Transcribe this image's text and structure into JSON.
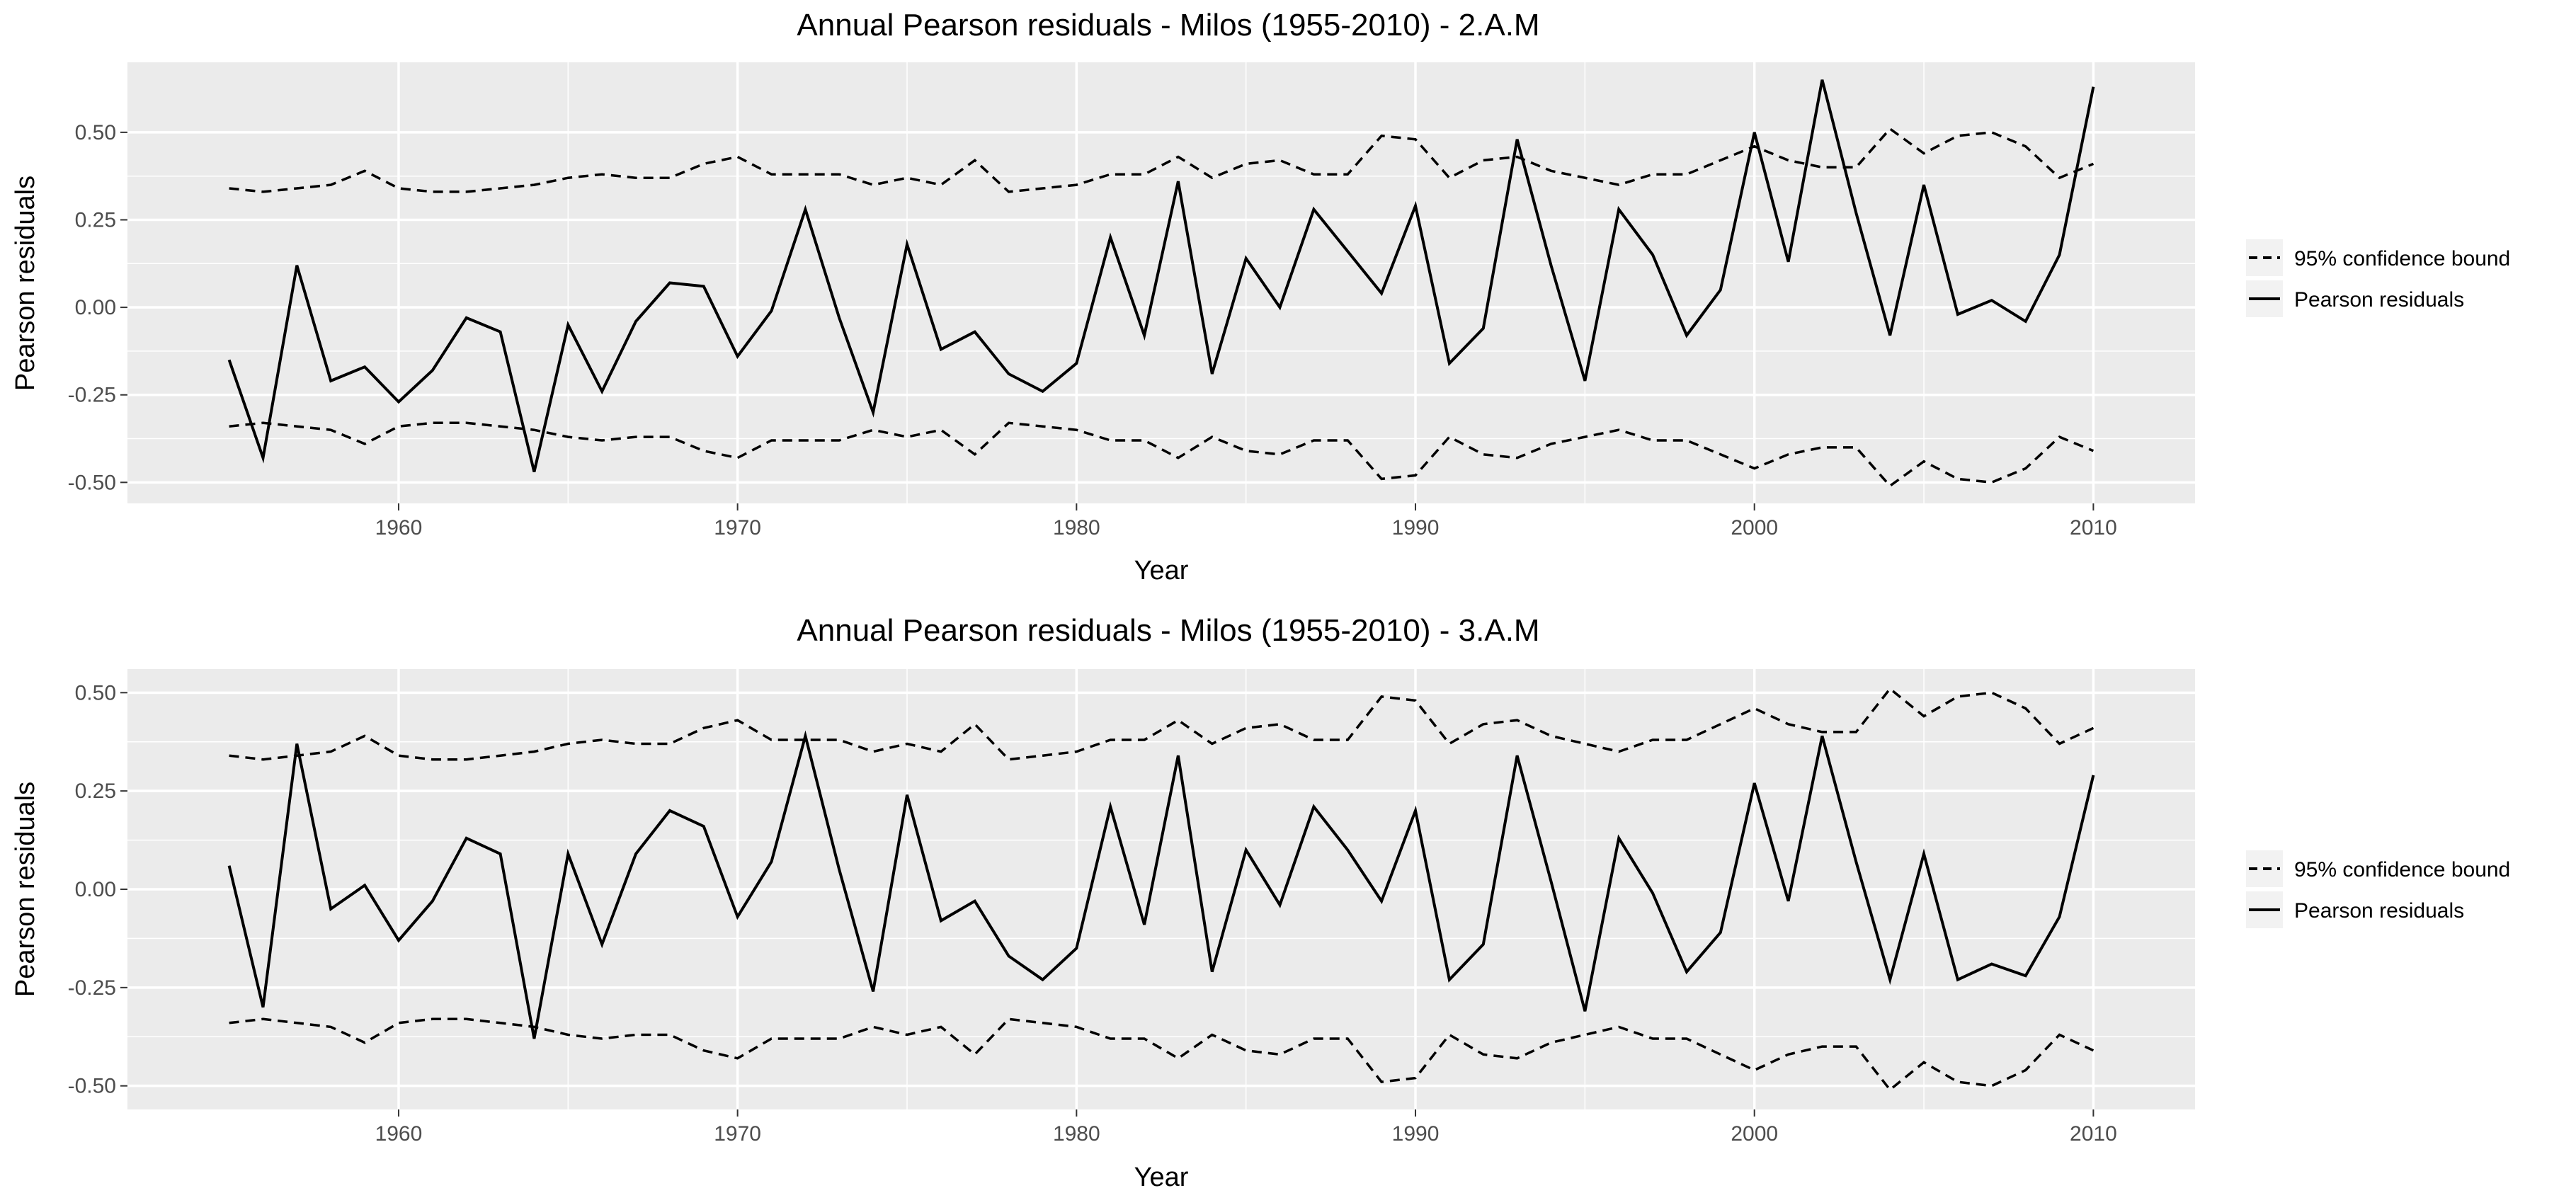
{
  "chart_data": [
    {
      "type": "line",
      "title": "Annual Pearson residuals - Milos (1955-2010) - 2.A.M",
      "xlabel": "Year",
      "ylabel": "Pearson residuals",
      "xlim": [
        1952,
        2013
      ],
      "ylim": [
        -0.56,
        0.7
      ],
      "grid": true,
      "legend_position": "right",
      "x_ticks": [
        1960,
        1970,
        1980,
        1990,
        2000,
        2010
      ],
      "x_tick_labels": [
        "1960",
        "1970",
        "1980",
        "1990",
        "2000",
        "2010"
      ],
      "y_ticks": [
        -0.5,
        -0.25,
        0,
        0.25,
        0.5
      ],
      "y_tick_labels": [
        "-0.50",
        "-0.25",
        "0.00",
        "0.25",
        "0.50"
      ],
      "x": [
        1955,
        1956,
        1957,
        1958,
        1959,
        1960,
        1961,
        1962,
        1963,
        1964,
        1965,
        1966,
        1967,
        1968,
        1969,
        1970,
        1971,
        1972,
        1973,
        1974,
        1975,
        1976,
        1977,
        1978,
        1979,
        1980,
        1981,
        1982,
        1983,
        1984,
        1985,
        1986,
        1987,
        1988,
        1989,
        1990,
        1991,
        1992,
        1993,
        1994,
        1995,
        1996,
        1997,
        1998,
        1999,
        2000,
        2001,
        2002,
        2003,
        2004,
        2005,
        2006,
        2007,
        2008,
        2009,
        2010
      ],
      "series": [
        {
          "name": "95% confidence bound",
          "style": "dashed",
          "color": "#000000",
          "upper": [
            0.34,
            0.33,
            0.34,
            0.35,
            0.39,
            0.34,
            0.33,
            0.33,
            0.34,
            0.35,
            0.37,
            0.38,
            0.37,
            0.37,
            0.41,
            0.43,
            0.38,
            0.38,
            0.38,
            0.35,
            0.37,
            0.35,
            0.42,
            0.33,
            0.34,
            0.35,
            0.38,
            0.38,
            0.43,
            0.37,
            0.41,
            0.42,
            0.38,
            0.38,
            0.49,
            0.48,
            0.37,
            0.42,
            0.43,
            0.39,
            0.37,
            0.35,
            0.38,
            0.38,
            0.42,
            0.46,
            0.42,
            0.4,
            0.4,
            0.51,
            0.44,
            0.49,
            0.5,
            0.46,
            0.37,
            0.41
          ],
          "lower": [
            -0.34,
            -0.33,
            -0.34,
            -0.35,
            -0.39,
            -0.34,
            -0.33,
            -0.33,
            -0.34,
            -0.35,
            -0.37,
            -0.38,
            -0.37,
            -0.37,
            -0.41,
            -0.43,
            -0.38,
            -0.38,
            -0.38,
            -0.35,
            -0.37,
            -0.35,
            -0.42,
            -0.33,
            -0.34,
            -0.35,
            -0.38,
            -0.38,
            -0.43,
            -0.37,
            -0.41,
            -0.42,
            -0.38,
            -0.38,
            -0.49,
            -0.48,
            -0.37,
            -0.42,
            -0.43,
            -0.39,
            -0.37,
            -0.35,
            -0.38,
            -0.38,
            -0.42,
            -0.46,
            -0.42,
            -0.4,
            -0.4,
            -0.51,
            -0.44,
            -0.49,
            -0.5,
            -0.46,
            -0.37,
            -0.41
          ]
        },
        {
          "name": "Pearson residuals",
          "style": "solid",
          "color": "#000000",
          "values": [
            -0.15,
            -0.43,
            0.12,
            -0.21,
            -0.17,
            -0.27,
            -0.18,
            -0.03,
            -0.07,
            -0.47,
            -0.05,
            -0.24,
            -0.04,
            0.07,
            0.06,
            -0.14,
            -0.01,
            0.28,
            -0.03,
            -0.3,
            0.18,
            -0.12,
            -0.07,
            -0.19,
            -0.24,
            -0.16,
            0.2,
            -0.08,
            0.36,
            -0.19,
            0.14,
            0.0,
            0.28,
            0.16,
            0.04,
            0.29,
            -0.16,
            -0.06,
            0.48,
            0.12,
            -0.21,
            0.28,
            0.15,
            -0.08,
            0.05,
            0.5,
            0.13,
            0.65,
            0.27,
            -0.08,
            0.35,
            -0.02,
            0.02,
            -0.04,
            0.15,
            0.63
          ]
        }
      ]
    },
    {
      "type": "line",
      "title": "Annual Pearson residuals - Milos (1955-2010) - 3.A.M",
      "xlabel": "Year",
      "ylabel": "Pearson residuals",
      "xlim": [
        1952,
        2013
      ],
      "ylim": [
        -0.56,
        0.56
      ],
      "grid": true,
      "legend_position": "right",
      "x_ticks": [
        1960,
        1970,
        1980,
        1990,
        2000,
        2010
      ],
      "x_tick_labels": [
        "1960",
        "1970",
        "1980",
        "1990",
        "2000",
        "2010"
      ],
      "y_ticks": [
        -0.5,
        -0.25,
        0,
        0.25,
        0.5
      ],
      "y_tick_labels": [
        "-0.50",
        "-0.25",
        "0.00",
        "0.25",
        "0.50"
      ],
      "x": [
        1955,
        1956,
        1957,
        1958,
        1959,
        1960,
        1961,
        1962,
        1963,
        1964,
        1965,
        1966,
        1967,
        1968,
        1969,
        1970,
        1971,
        1972,
        1973,
        1974,
        1975,
        1976,
        1977,
        1978,
        1979,
        1980,
        1981,
        1982,
        1983,
        1984,
        1985,
        1986,
        1987,
        1988,
        1989,
        1990,
        1991,
        1992,
        1993,
        1994,
        1995,
        1996,
        1997,
        1998,
        1999,
        2000,
        2001,
        2002,
        2003,
        2004,
        2005,
        2006,
        2007,
        2008,
        2009,
        2010
      ],
      "series": [
        {
          "name": "95% confidence bound",
          "style": "dashed",
          "color": "#000000",
          "upper": [
            0.34,
            0.33,
            0.34,
            0.35,
            0.39,
            0.34,
            0.33,
            0.33,
            0.34,
            0.35,
            0.37,
            0.38,
            0.37,
            0.37,
            0.41,
            0.43,
            0.38,
            0.38,
            0.38,
            0.35,
            0.37,
            0.35,
            0.42,
            0.33,
            0.34,
            0.35,
            0.38,
            0.38,
            0.43,
            0.37,
            0.41,
            0.42,
            0.38,
            0.38,
            0.49,
            0.48,
            0.37,
            0.42,
            0.43,
            0.39,
            0.37,
            0.35,
            0.38,
            0.38,
            0.42,
            0.46,
            0.42,
            0.4,
            0.4,
            0.51,
            0.44,
            0.49,
            0.5,
            0.46,
            0.37,
            0.41
          ],
          "lower": [
            -0.34,
            -0.33,
            -0.34,
            -0.35,
            -0.39,
            -0.34,
            -0.33,
            -0.33,
            -0.34,
            -0.35,
            -0.37,
            -0.38,
            -0.37,
            -0.37,
            -0.41,
            -0.43,
            -0.38,
            -0.38,
            -0.38,
            -0.35,
            -0.37,
            -0.35,
            -0.42,
            -0.33,
            -0.34,
            -0.35,
            -0.38,
            -0.38,
            -0.43,
            -0.37,
            -0.41,
            -0.42,
            -0.38,
            -0.38,
            -0.49,
            -0.48,
            -0.37,
            -0.42,
            -0.43,
            -0.39,
            -0.37,
            -0.35,
            -0.38,
            -0.38,
            -0.42,
            -0.46,
            -0.42,
            -0.4,
            -0.4,
            -0.51,
            -0.44,
            -0.49,
            -0.5,
            -0.46,
            -0.37,
            -0.41
          ]
        },
        {
          "name": "Pearson residuals",
          "style": "solid",
          "color": "#000000",
          "values": [
            0.06,
            -0.3,
            0.37,
            -0.05,
            0.01,
            -0.13,
            -0.03,
            0.13,
            0.09,
            -0.38,
            0.09,
            -0.14,
            0.09,
            0.2,
            0.16,
            -0.07,
            0.07,
            0.39,
            0.05,
            -0.26,
            0.24,
            -0.08,
            -0.03,
            -0.17,
            -0.23,
            -0.15,
            0.21,
            -0.09,
            0.34,
            -0.21,
            0.1,
            -0.04,
            0.21,
            0.1,
            -0.03,
            0.2,
            -0.23,
            -0.14,
            0.34,
            0.02,
            -0.31,
            0.13,
            -0.01,
            -0.21,
            -0.11,
            0.27,
            -0.03,
            0.39,
            0.07,
            -0.23,
            0.09,
            -0.23,
            -0.19,
            -0.22,
            -0.07,
            0.29
          ]
        }
      ]
    }
  ],
  "colors": {
    "panel_background": "#ebebeb",
    "grid_major": "#ffffff",
    "line": "#000000",
    "axis_text": "#4d4d4d",
    "legend_key_background": "#f2f2f2"
  }
}
